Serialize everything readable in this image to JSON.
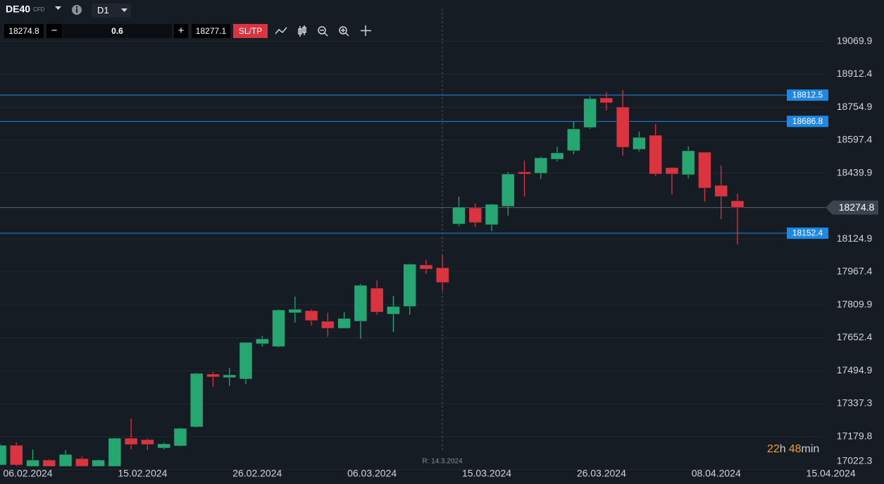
{
  "header": {
    "symbol": "DE40",
    "symbol_type": "CFD",
    "timeframe": "D1"
  },
  "trade": {
    "sell_price": "18274.8",
    "minus": "−",
    "volume": "0.6",
    "plus": "+",
    "buy_price": "18277.1",
    "sltp": "SL/TP"
  },
  "chart_data": {
    "type": "candlestick",
    "categories": [
      null,
      null,
      "06.02.2024",
      null,
      null,
      null,
      null,
      null,
      null,
      "15.02.2024",
      null,
      null,
      null,
      null,
      null,
      null,
      "26.02.2024",
      null,
      null,
      null,
      null,
      null,
      null,
      "06.03.2024",
      null,
      null,
      null,
      null,
      null,
      null,
      "15.03.2024",
      null,
      null,
      null,
      null,
      null,
      null,
      "26.03.2024",
      null,
      null,
      null,
      null,
      null,
      null,
      "08.04.2024",
      null,
      null,
      null,
      null,
      null,
      null,
      "15.04.2024"
    ],
    "open": [
      17044.3,
      17138.6,
      17037.6,
      17067.9,
      17037.6,
      17074.6,
      17037.6,
      17037.6,
      17172.3,
      17165.6,
      17125.2,
      17135.3,
      17226.2,
      17478.8,
      17462.0,
      17455.2,
      17623.6,
      17610.2,
      17771.8,
      17781.9,
      17731.4,
      17697.7,
      17731.4,
      17889.7,
      17765.1,
      17802.1,
      18000.8,
      17987.4,
      18196.2,
      18273.6,
      18192.8,
      18280.4,
      18445.4,
      18438.7,
      18506.0,
      18546.5,
      18657.6,
      18799.1,
      18755.3,
      18553.2,
      18620.6,
      18465.6,
      18431.9,
      18539.7,
      18381.4,
      18307.3,
      null,
      null,
      null,
      null,
      null,
      null
    ],
    "high": [
      17145.4,
      17152.1,
      17118.4,
      17071.3,
      17115.1,
      17084.7,
      17071.3,
      17175.7,
      17266.6,
      17172.3,
      17152.1,
      17222.8,
      17485.5,
      17488.9,
      17509.1,
      17630.4,
      17660.7,
      17788.7,
      17849.3,
      17788.7,
      17771.8,
      17775.2,
      17909.9,
      17926.7,
      17852.6,
      18007.6,
      18024.4,
      18048.0,
      18327.5,
      18293.9,
      18293.9,
      18445.4,
      18499.3,
      18519.5,
      18566.7,
      18687.9,
      18805.8,
      18826.0,
      18836.1,
      18637.4,
      18674.4,
      18469.0,
      18566.7,
      18539.7,
      18475.7,
      18341.0,
      null,
      null,
      null,
      null,
      null,
      null
    ],
    "low": [
      17044.3,
      17037.6,
      17037.6,
      17037.6,
      17037.6,
      17037.6,
      17037.6,
      17037.6,
      17118.4,
      17115.1,
      17118.4,
      17131.9,
      17222.8,
      17418.2,
      17421.5,
      17431.6,
      17610.2,
      17606.8,
      17724.7,
      17711.2,
      17657.3,
      17697.7,
      17647.2,
      17761.7,
      17680.9,
      17761.7,
      17957.1,
      17876.2,
      18186.1,
      18182.7,
      18162.5,
      18236.6,
      18327.5,
      18411.7,
      18495.9,
      18529.6,
      18650.9,
      18738.4,
      18522.9,
      18543.1,
      18425.2,
      18337.6,
      18415.1,
      18304.0,
      18219.8,
      18098.5,
      null,
      null,
      null,
      null,
      null,
      null
    ],
    "close": [
      17138.6,
      17044.3,
      17067.9,
      17037.6,
      17094.8,
      17037.6,
      17067.9,
      17172.3,
      17142.0,
      17142.0,
      17145.4,
      17219.5,
      17482.2,
      17465.3,
      17475.4,
      17630.4,
      17647.2,
      17785.3,
      17788.7,
      17734.8,
      17697.7,
      17744.9,
      17903.2,
      17775.2,
      17802.1,
      18004.2,
      17980.6,
      17916.6,
      18277.0,
      18202.9,
      18290.5,
      18435.3,
      18435.3,
      18512.8,
      18536.4,
      18650.9,
      18795.7,
      18775.5,
      18563.3,
      18610.4,
      18435.3,
      18435.3,
      18546.5,
      18368.0,
      18327.5,
      18274.8,
      null,
      null,
      null,
      null,
      null,
      null
    ],
    "up_color": "#26a671",
    "down_color": "#d9343f",
    "ylim": [
      16953.4,
      19267.2
    ],
    "yticks": [
      19069.9,
      18912.4,
      18754.9,
      18597.4,
      18439.9,
      18124.9,
      17967.4,
      17809.9,
      17652.4,
      17494.9,
      17337.3,
      17179.8,
      17022.3
    ],
    "grid": true,
    "price_lines": [
      18812.5,
      18686.8,
      18152.4
    ],
    "price_line_color": "#1e88e5",
    "current_price": 18274.8,
    "annotation": "R: 14.3.2024"
  },
  "countdown": {
    "hours": "22",
    "hours_unit": "h",
    "minutes": "48",
    "minutes_unit": "min"
  }
}
